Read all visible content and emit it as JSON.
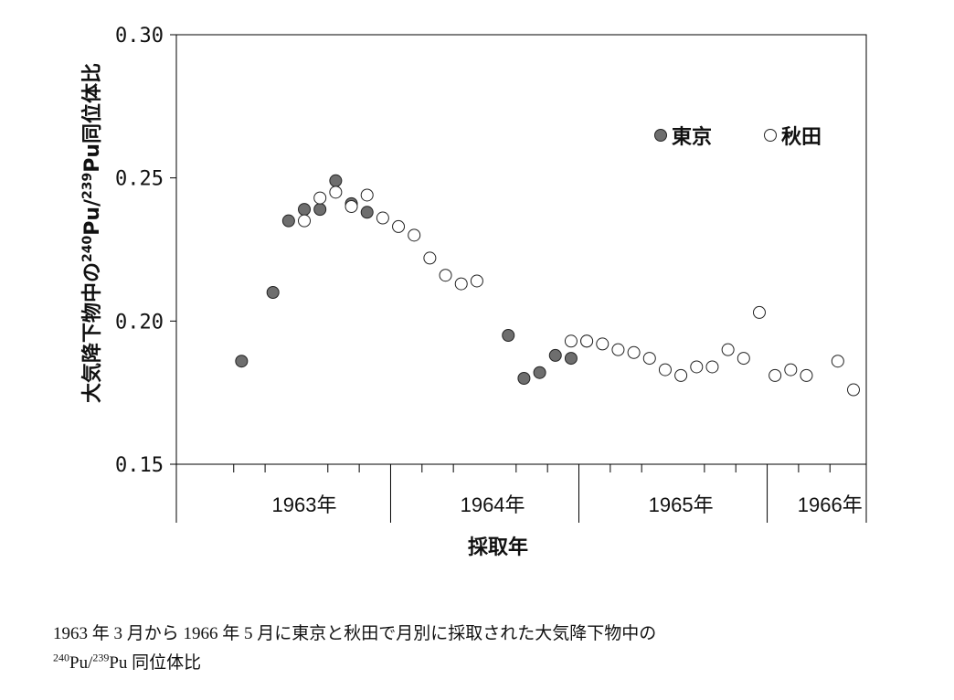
{
  "chart_data": {
    "type": "scatter",
    "ylabel_main": "大気降下物中の",
    "ylabel_sup1": "240",
    "ylabel_mid1": "Pu/",
    "ylabel_sup2": "239",
    "ylabel_mid2": "Pu同位体比",
    "xlabel": "採取年",
    "ylim": [
      0.15,
      0.3
    ],
    "y_ticks": [
      "0.30",
      "0.25",
      "0.20",
      "0.15"
    ],
    "y_tick_values": [
      0.3,
      0.25,
      0.2,
      0.15
    ],
    "x_range": [
      1,
      42
    ],
    "year_labels": [
      "1963年",
      "1964年",
      "1965年",
      "1966年"
    ],
    "year_centers": [
      7,
      19,
      31,
      40.5
    ],
    "year_boundaries": [
      13,
      25,
      37
    ],
    "month_ticks": [
      3,
      5,
      9,
      11,
      15,
      17,
      21,
      23,
      27,
      29,
      33,
      35,
      39,
      41
    ],
    "grid": false,
    "legend_position": "top-right",
    "series": [
      {
        "name": "東京",
        "fill": "#6e6e6e",
        "points": [
          [
            3,
            0.186
          ],
          [
            5,
            0.21
          ],
          [
            6,
            0.235
          ],
          [
            7,
            0.239
          ],
          [
            8,
            0.239
          ],
          [
            9,
            0.249
          ],
          [
            10,
            0.241
          ],
          [
            11,
            0.238
          ],
          [
            20,
            0.195
          ],
          [
            21,
            0.18
          ],
          [
            22,
            0.182
          ],
          [
            23,
            0.188
          ],
          [
            24,
            0.187
          ],
          [
            25,
            0.193
          ]
        ]
      },
      {
        "name": "秋田",
        "fill": "#ffffff",
        "points": [
          [
            7,
            0.235
          ],
          [
            8,
            0.243
          ],
          [
            9,
            0.245
          ],
          [
            10,
            0.24
          ],
          [
            11,
            0.244
          ],
          [
            12,
            0.236
          ],
          [
            13,
            0.233
          ],
          [
            14,
            0.23
          ],
          [
            15,
            0.222
          ],
          [
            16,
            0.216
          ],
          [
            17,
            0.213
          ],
          [
            18,
            0.214
          ],
          [
            24,
            0.193
          ],
          [
            25,
            0.193
          ],
          [
            26,
            0.192
          ],
          [
            27,
            0.19
          ],
          [
            28,
            0.189
          ],
          [
            29,
            0.187
          ],
          [
            30,
            0.183
          ],
          [
            31,
            0.181
          ],
          [
            32,
            0.184
          ],
          [
            33,
            0.184
          ],
          [
            34,
            0.19
          ],
          [
            35,
            0.187
          ],
          [
            36,
            0.203
          ],
          [
            37,
            0.181
          ],
          [
            38,
            0.183
          ],
          [
            39,
            0.181
          ],
          [
            41,
            0.186
          ],
          [
            42,
            0.176
          ]
        ]
      }
    ]
  },
  "caption": {
    "line1": "1963 年 3 月から 1966 年 5 月に東京と秋田で月別に採取された大気降下物中の",
    "sup1": "240",
    "mid": "Pu/",
    "sup2": "239",
    "end": "Pu 同位体比"
  }
}
